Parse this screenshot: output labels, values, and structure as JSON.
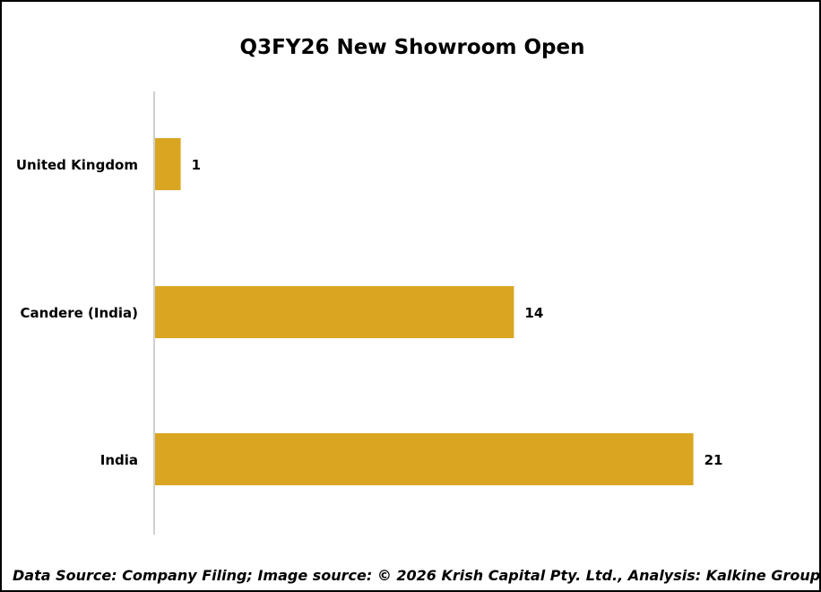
{
  "chart_data": {
    "type": "bar",
    "orientation": "horizontal",
    "title": "Q3FY26 New Showroom Open",
    "categories": [
      "United Kingdom",
      "Candere (India)",
      "India"
    ],
    "values": [
      1,
      14,
      21
    ],
    "xlim": [
      0,
      22
    ],
    "grid": false,
    "legend": "none",
    "bar_color": "#DAA520",
    "axis_color": "#d0d0d0"
  },
  "footer": {
    "text": "Data Source: Company Filing; Image source: © 2026 Krish Capital Pty. Ltd., Analysis: Kalkine Group"
  }
}
